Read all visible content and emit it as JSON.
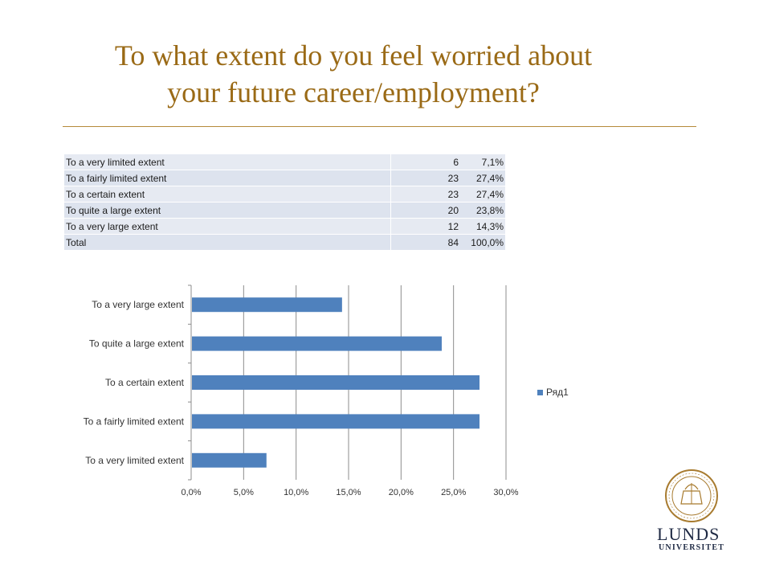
{
  "title": {
    "line1": "To what extent do you feel worried about",
    "line2": "your future career/employment?"
  },
  "table": {
    "rows": [
      {
        "label": "To a very limited extent",
        "count": "6",
        "percent": "7,1%"
      },
      {
        "label": "To a fairly limited extent",
        "count": "23",
        "percent": "27,4%"
      },
      {
        "label": "To a certain extent",
        "count": "23",
        "percent": "27,4%"
      },
      {
        "label": "To quite a large extent",
        "count": "20",
        "percent": "23,8%"
      },
      {
        "label": "To a very large extent",
        "count": "12",
        "percent": "14,3%"
      },
      {
        "label": "Total",
        "count": "84",
        "percent": "100,0%"
      }
    ]
  },
  "chart_data": {
    "type": "bar",
    "orientation": "horizontal",
    "categories": [
      "To a very large extent",
      "To quite a large extent",
      "To a certain extent",
      "To a fairly limited extent",
      "To a very limited extent"
    ],
    "series": [
      {
        "name": "Ряд1",
        "values": [
          14.3,
          23.8,
          27.4,
          27.4,
          7.1
        ]
      }
    ],
    "xlim": [
      0,
      30
    ],
    "xticks": [
      "0,0%",
      "5,0%",
      "10,0%",
      "15,0%",
      "20,0%",
      "25,0%",
      "30,0%"
    ],
    "grid": true,
    "legend": "right",
    "bar_color": "#4f81bd"
  },
  "logo": {
    "name_line1": "LUNDS",
    "name_line2": "UNIVERSITET"
  }
}
